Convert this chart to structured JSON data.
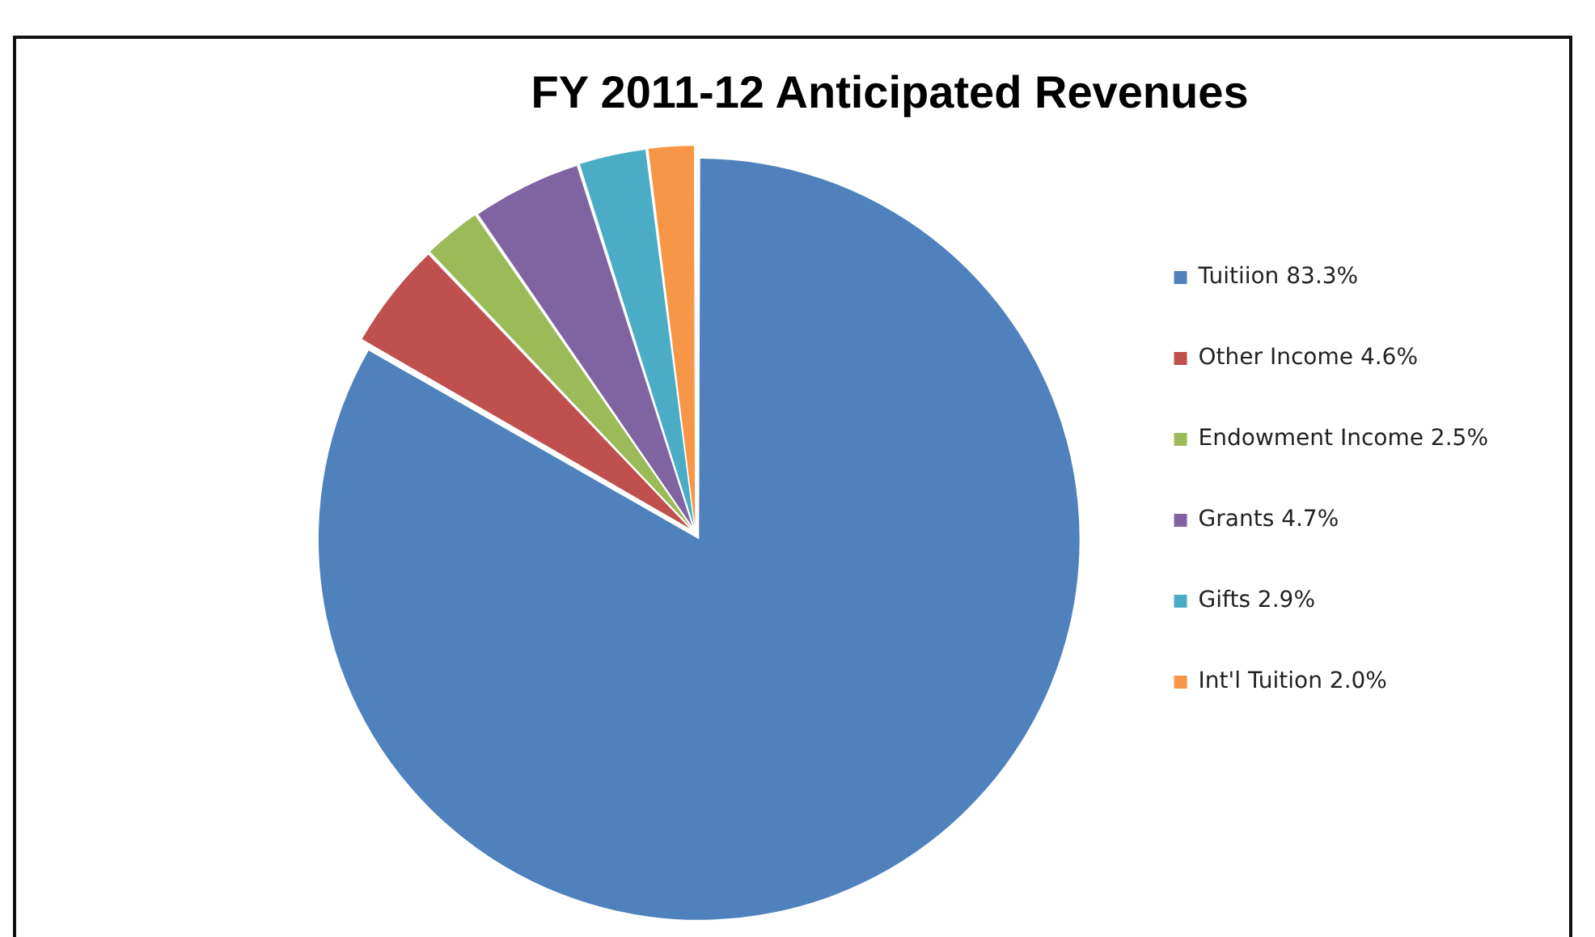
{
  "chart_data": {
    "type": "pie",
    "title": "FY 2011-12 Anticipated Revenues",
    "categories": [
      "Tuitiion 83.3%",
      "Other Income 4.6%",
      "Endowment Income 2.5%",
      "Grants 4.7%",
      "Gifts 2.9%",
      "Int'l Tuition 2.0%"
    ],
    "values": [
      83.3,
      4.6,
      2.5,
      4.7,
      2.9,
      2.0
    ],
    "colors": [
      "#4f81bd",
      "#c0504d",
      "#9bbb59",
      "#8064a2",
      "#4bacc6",
      "#f79646"
    ],
    "legend": "right"
  }
}
